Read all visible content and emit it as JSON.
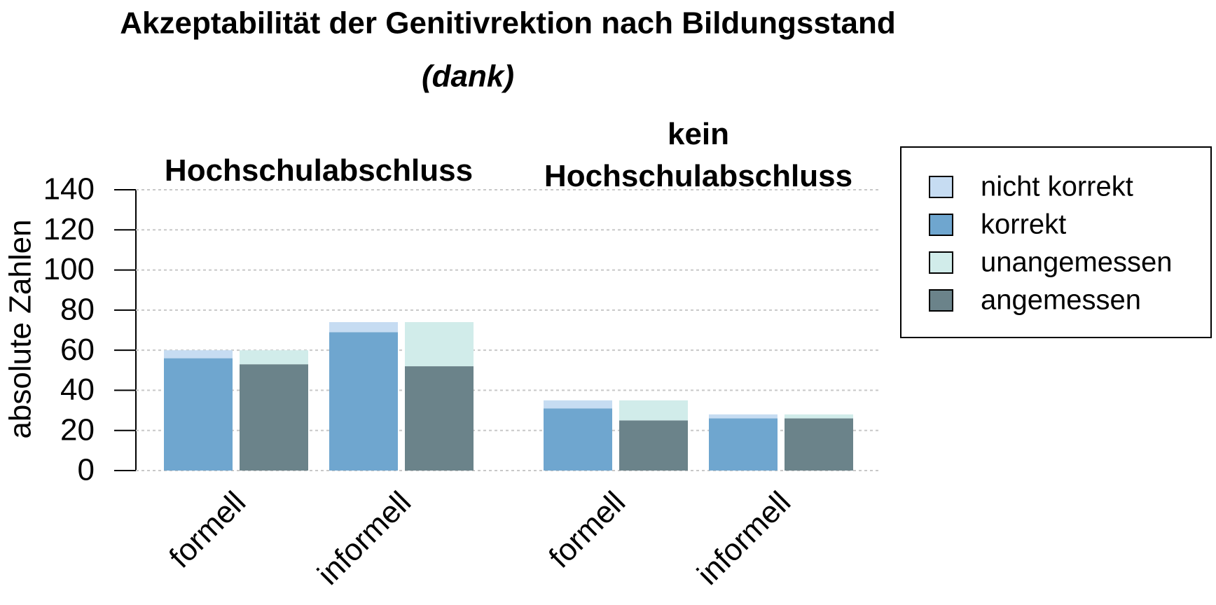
{
  "chart_data": {
    "type": "bar",
    "stacked": true,
    "title": "Akzeptabilität der Genitivrektion nach Bildungsstand",
    "subtitle": "(dank)",
    "y_label": "absolute Zahlen",
    "ylim": [
      0,
      140
    ],
    "yticks": [
      0,
      20,
      40,
      60,
      80,
      100,
      120,
      140
    ],
    "grid": true,
    "legend": "right",
    "series": [
      {
        "name": "nicht korrekt",
        "color": "#c6dcf2"
      },
      {
        "name": "korrekt",
        "color": "#6fa6cf"
      },
      {
        "name": "unangemessen",
        "color": "#d1ecea"
      },
      {
        "name": "angemessen",
        "color": "#6b838a"
      }
    ],
    "panels": [
      {
        "title": "Hochschulabschluss",
        "categories": [
          "formell",
          "informell"
        ],
        "values": [
          [
            4,
            5
          ],
          [
            56,
            69
          ],
          [
            7,
            22
          ],
          [
            53,
            52
          ]
        ]
      },
      {
        "title": "kein Hochschulabschluss",
        "categories": [
          "formell",
          "informell"
        ],
        "values": [
          [
            4,
            2
          ],
          [
            31,
            26
          ],
          [
            10,
            2
          ],
          [
            25,
            26
          ]
        ]
      }
    ]
  }
}
